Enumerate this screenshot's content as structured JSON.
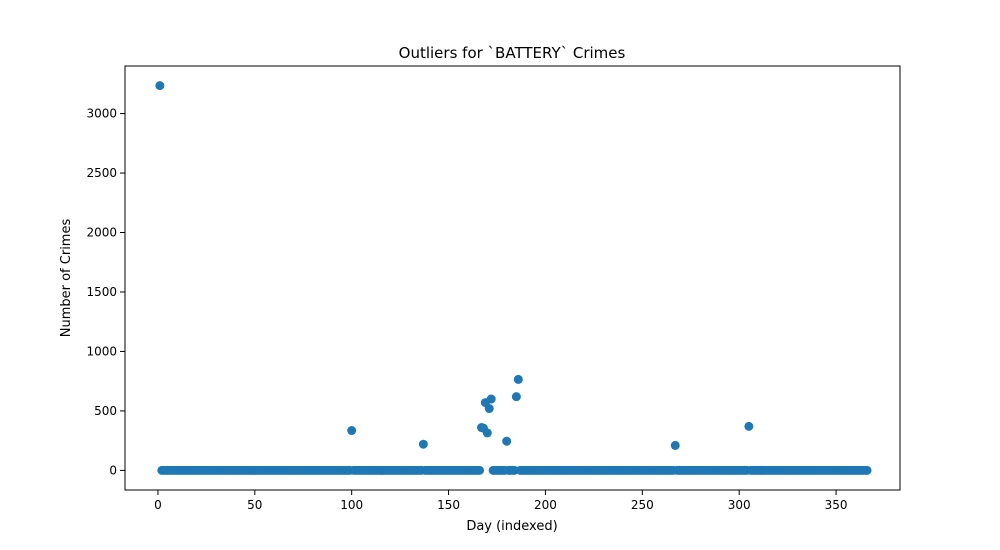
{
  "chart_data": {
    "type": "scatter",
    "title": "Outliers for `BATTERY` Crimes",
    "xlabel": "Day (indexed)",
    "ylabel": "Number of Crimes",
    "xlim": [
      -17,
      383
    ],
    "ylim": [
      -165,
      3400
    ],
    "xticks": [
      0,
      50,
      100,
      150,
      200,
      250,
      300,
      350
    ],
    "yticks": [
      0,
      500,
      1000,
      1500,
      2000,
      2500,
      3000
    ],
    "grid": false,
    "marker_color": "#1f77b4",
    "series": [
      {
        "zero_days": {
          "start": 2,
          "end": 366,
          "value": 0
        },
        "points": [
          {
            "x": 1,
            "y": 3235
          },
          {
            "x": 100,
            "y": 335
          },
          {
            "x": 137,
            "y": 220
          },
          {
            "x": 167,
            "y": 360
          },
          {
            "x": 168,
            "y": 355
          },
          {
            "x": 169,
            "y": 570
          },
          {
            "x": 170,
            "y": 315
          },
          {
            "x": 171,
            "y": 520
          },
          {
            "x": 172,
            "y": 600
          },
          {
            "x": 180,
            "y": 245
          },
          {
            "x": 185,
            "y": 620
          },
          {
            "x": 186,
            "y": 765
          },
          {
            "x": 267,
            "y": 210
          },
          {
            "x": 305,
            "y": 370
          }
        ]
      }
    ]
  }
}
